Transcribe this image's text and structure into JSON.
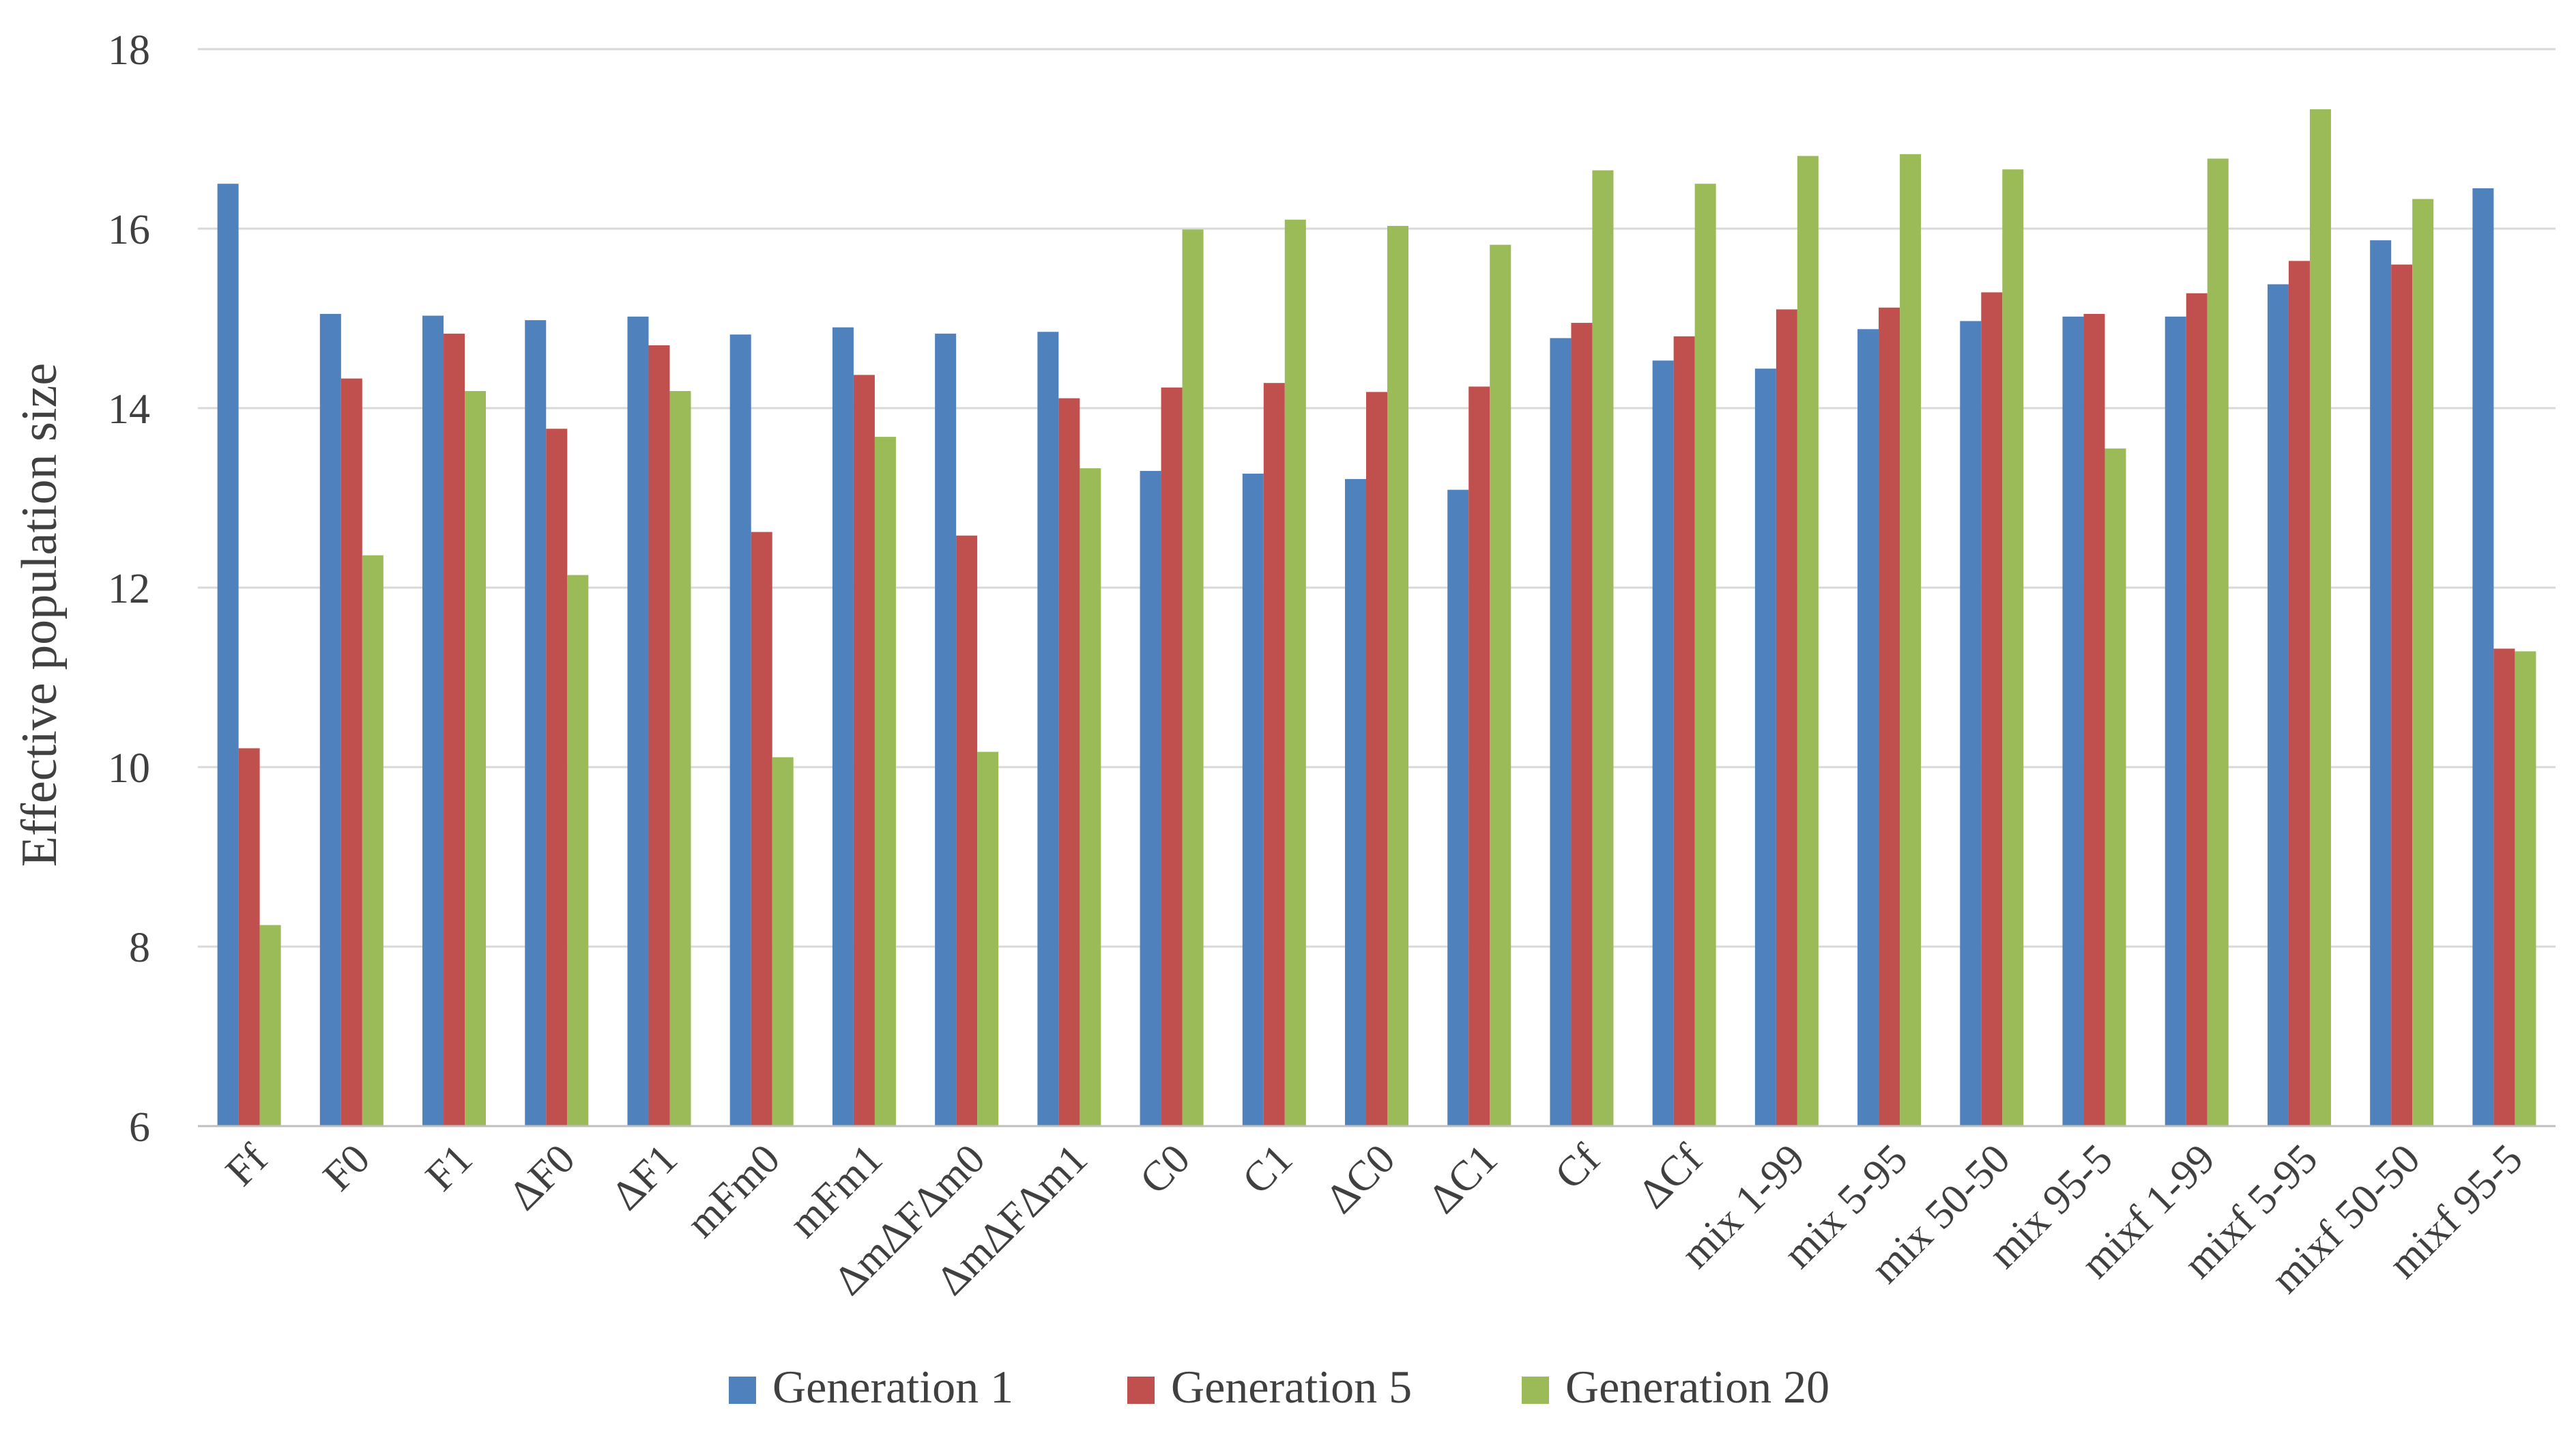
{
  "chart_data": {
    "type": "bar",
    "title": "",
    "xlabel": "",
    "ylabel": "Effective population size",
    "ylim": [
      6,
      18
    ],
    "yticks": [
      6,
      8,
      10,
      12,
      14,
      16,
      18
    ],
    "grid": true,
    "legend_position": "bottom",
    "categories": [
      "Ff",
      "F0",
      "F1",
      "ΔF0",
      "ΔF1",
      "mFm0",
      "mFm1",
      "ΔmΔFΔm0",
      "ΔmΔFΔm1",
      "C0",
      "C1",
      "ΔC0",
      "ΔC1",
      "Cf",
      "ΔCf",
      "mix 1-99",
      "mix 5-95",
      "mix 50-50",
      "mix 95-5",
      "mixf 1-99",
      "mixf 5-95",
      "mixf 50-50",
      "mixf 95-5"
    ],
    "series": [
      {
        "name": "Generation 1",
        "color": "#4F81BD",
        "values": [
          16.5,
          15.05,
          15.03,
          14.98,
          15.02,
          14.82,
          14.9,
          14.83,
          14.85,
          13.3,
          13.27,
          13.21,
          13.09,
          14.78,
          14.53,
          14.44,
          14.88,
          14.97,
          15.02,
          15.02,
          15.38,
          15.87,
          16.45
        ]
      },
      {
        "name": "Generation 5",
        "color": "#C0504D",
        "values": [
          10.21,
          14.33,
          14.83,
          13.77,
          14.7,
          12.62,
          14.37,
          12.58,
          14.11,
          14.23,
          14.28,
          14.18,
          14.24,
          14.95,
          14.8,
          15.1,
          15.12,
          15.29,
          15.05,
          15.28,
          15.64,
          15.6,
          11.32
        ]
      },
      {
        "name": "Generation 20",
        "color": "#9BBB59",
        "values": [
          8.24,
          12.36,
          14.19,
          12.14,
          14.19,
          10.11,
          13.68,
          10.17,
          13.33,
          15.99,
          16.1,
          16.03,
          15.82,
          16.65,
          16.5,
          16.81,
          16.83,
          16.66,
          13.55,
          16.78,
          17.33,
          16.33,
          11.29
        ]
      }
    ]
  }
}
